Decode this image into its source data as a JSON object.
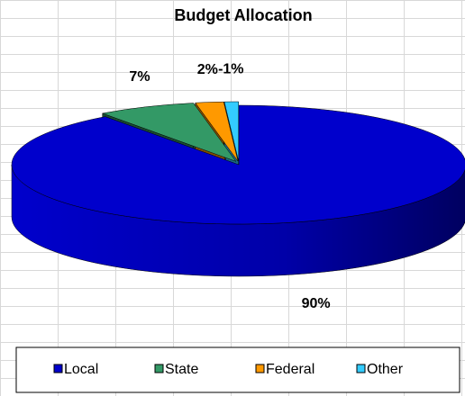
{
  "chart_data": {
    "type": "pie",
    "title": "Budget Allocation",
    "categories": [
      "Local",
      "State",
      "Federal",
      "Other"
    ],
    "values": [
      90,
      7,
      2,
      -1
    ],
    "value_labels": [
      "90%",
      "7%",
      "2%",
      "-1%"
    ],
    "colors": [
      "#0000cc",
      "#339966",
      "#ff9900",
      "#33ccff"
    ],
    "legend": "bottom"
  }
}
